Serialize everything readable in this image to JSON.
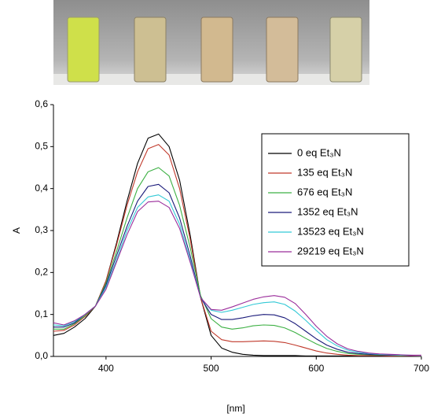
{
  "chart_data": {
    "type": "line",
    "xlabel": "[nm]",
    "ylabel": "A",
    "x": [
      350,
      360,
      370,
      380,
      390,
      400,
      410,
      420,
      430,
      440,
      450,
      460,
      470,
      480,
      490,
      500,
      510,
      520,
      530,
      540,
      550,
      560,
      570,
      580,
      590,
      600,
      610,
      620,
      630,
      640,
      650,
      660,
      670,
      680,
      690,
      700
    ],
    "xlim": [
      350,
      700
    ],
    "xticks": [
      400,
      500,
      600,
      700
    ],
    "ylim": [
      0,
      0.6
    ],
    "yticks": [
      {
        "value": 0,
        "label": "0,0"
      },
      {
        "value": 0.1,
        "label": "0,1"
      },
      {
        "value": 0.2,
        "label": "0,2"
      },
      {
        "value": 0.3,
        "label": "0,3"
      },
      {
        "value": 0.4,
        "label": "0,4"
      },
      {
        "value": 0.5,
        "label": "0,5"
      },
      {
        "value": 0.6,
        "label": "0,6"
      }
    ],
    "legend": "upper right",
    "series": [
      {
        "name": "0 eq Et₃N",
        "color": "#000000",
        "values": [
          0.05,
          0.055,
          0.07,
          0.09,
          0.12,
          0.18,
          0.27,
          0.37,
          0.46,
          0.52,
          0.53,
          0.5,
          0.42,
          0.29,
          0.14,
          0.05,
          0.02,
          0.01,
          0.005,
          0.003,
          0.002,
          0.002,
          0.002,
          0.002,
          0.001,
          0.001,
          0.001,
          0.001,
          0.001,
          0.001,
          0,
          0,
          0,
          0,
          0,
          0
        ]
      },
      {
        "name": "135 eq Et₃N",
        "color": "#c0392b",
        "values": [
          0.06,
          0.062,
          0.075,
          0.095,
          0.12,
          0.18,
          0.265,
          0.36,
          0.44,
          0.495,
          0.505,
          0.48,
          0.4,
          0.28,
          0.14,
          0.06,
          0.04,
          0.035,
          0.035,
          0.036,
          0.037,
          0.036,
          0.033,
          0.027,
          0.02,
          0.013,
          0.008,
          0.005,
          0.003,
          0.002,
          0.002,
          0.002,
          0.001,
          0.001,
          0.001,
          0.001
        ]
      },
      {
        "name": "676 eq Et₃N",
        "color": "#3cb043",
        "values": [
          0.065,
          0.065,
          0.078,
          0.097,
          0.12,
          0.175,
          0.25,
          0.33,
          0.4,
          0.44,
          0.45,
          0.43,
          0.36,
          0.26,
          0.145,
          0.09,
          0.07,
          0.065,
          0.068,
          0.073,
          0.075,
          0.074,
          0.068,
          0.057,
          0.043,
          0.03,
          0.019,
          0.012,
          0.007,
          0.005,
          0.004,
          0.003,
          0.003,
          0.002,
          0.002,
          0.002
        ]
      },
      {
        "name": "1352 eq Et₃N",
        "color": "#1a1a7a",
        "values": [
          0.07,
          0.07,
          0.08,
          0.1,
          0.12,
          0.17,
          0.24,
          0.31,
          0.37,
          0.405,
          0.41,
          0.39,
          0.33,
          0.24,
          0.14,
          0.1,
          0.088,
          0.088,
          0.092,
          0.097,
          0.1,
          0.099,
          0.092,
          0.078,
          0.06,
          0.042,
          0.027,
          0.017,
          0.01,
          0.007,
          0.005,
          0.004,
          0.003,
          0.003,
          0.002,
          0.002
        ]
      },
      {
        "name": "13523 eq Et₃N",
        "color": "#33c9d6",
        "values": [
          0.075,
          0.073,
          0.083,
          0.1,
          0.12,
          0.165,
          0.23,
          0.3,
          0.355,
          0.38,
          0.385,
          0.37,
          0.315,
          0.23,
          0.14,
          0.11,
          0.105,
          0.11,
          0.117,
          0.124,
          0.128,
          0.13,
          0.124,
          0.108,
          0.086,
          0.062,
          0.04,
          0.025,
          0.015,
          0.01,
          0.007,
          0.005,
          0.004,
          0.003,
          0.003,
          0.002
        ]
      },
      {
        "name": "29219 eq Et₃N",
        "color": "#9b2d9b",
        "values": [
          0.08,
          0.075,
          0.085,
          0.1,
          0.12,
          0.16,
          0.225,
          0.29,
          0.345,
          0.368,
          0.37,
          0.355,
          0.305,
          0.225,
          0.14,
          0.112,
          0.11,
          0.118,
          0.127,
          0.136,
          0.142,
          0.145,
          0.141,
          0.126,
          0.1,
          0.072,
          0.048,
          0.03,
          0.018,
          0.012,
          0.008,
          0.006,
          0.005,
          0.004,
          0.003,
          0.003
        ]
      }
    ]
  }
}
